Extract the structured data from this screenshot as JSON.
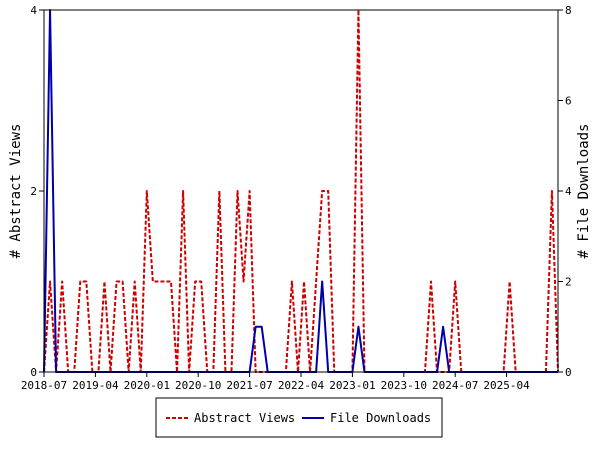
{
  "chart_data": {
    "type": "line",
    "ylabel_left": "# Abstract Views",
    "ylabel_right": "# File Downloads",
    "x_ticks": [
      "2018-07",
      "2019-04",
      "2020-01",
      "2020-10",
      "2021-07",
      "2022-04",
      "2023-01",
      "2023-10",
      "2024-07",
      "2025-04"
    ],
    "x_range": [
      0,
      85
    ],
    "y_left_ticks": [
      "0",
      "2",
      "4"
    ],
    "y_left_range": [
      0,
      4
    ],
    "y_right_ticks": [
      "0",
      "2",
      "4",
      "6",
      "8"
    ],
    "y_right_range": [
      0,
      8
    ],
    "legend_position": "bottom",
    "colors": {
      "abstract_views": "#cc0000",
      "file_downloads": "#0000aa"
    },
    "series": [
      {
        "name": "Abstract Views",
        "axis": "left",
        "x": [
          0,
          1,
          2,
          3,
          4,
          5,
          6,
          7,
          8,
          9,
          10,
          11,
          12,
          13,
          14,
          15,
          16,
          17,
          18,
          19,
          20,
          21,
          22,
          23,
          24,
          25,
          26,
          27,
          28,
          29,
          30,
          31,
          32,
          33,
          34,
          35,
          36,
          37,
          38,
          39,
          40,
          41,
          42,
          43,
          44,
          45,
          46,
          47,
          48,
          49,
          50,
          51,
          52,
          53,
          54,
          55,
          56,
          57,
          58,
          59,
          60,
          61,
          62,
          63,
          64,
          65,
          66,
          67,
          68,
          69,
          70,
          71,
          72,
          73,
          74,
          75,
          76,
          77,
          78,
          79,
          80,
          81,
          82,
          83,
          84,
          85
        ],
        "values": [
          0,
          1,
          0,
          1,
          0,
          0,
          1,
          1,
          0,
          0,
          1,
          0,
          1,
          1,
          0,
          1,
          0,
          2,
          1,
          1,
          1,
          1,
          0,
          2,
          0,
          1,
          1,
          0,
          0,
          2,
          0,
          0,
          2,
          1,
          2,
          0,
          0,
          0,
          0,
          0,
          0,
          1,
          0,
          1,
          0,
          1,
          2,
          2,
          0,
          0,
          0,
          0,
          4,
          0,
          0,
          0,
          0,
          0,
          0,
          0,
          0,
          0,
          0,
          0,
          1,
          0,
          0,
          0,
          1,
          0,
          0,
          0,
          0,
          0,
          0,
          0,
          0,
          1,
          0,
          0,
          0,
          0,
          0,
          0,
          2,
          0
        ]
      },
      {
        "name": "File Downloads",
        "axis": "right",
        "x": [
          0,
          1,
          2,
          3,
          4,
          5,
          6,
          7,
          8,
          9,
          10,
          11,
          12,
          13,
          14,
          15,
          16,
          17,
          18,
          19,
          20,
          21,
          22,
          23,
          24,
          25,
          26,
          27,
          28,
          29,
          30,
          31,
          32,
          33,
          34,
          35,
          36,
          37,
          38,
          39,
          40,
          41,
          42,
          43,
          44,
          45,
          46,
          47,
          48,
          49,
          50,
          51,
          52,
          53,
          54,
          55,
          56,
          57,
          58,
          59,
          60,
          61,
          62,
          63,
          64,
          65,
          66,
          67,
          68,
          69,
          70,
          71,
          72,
          73,
          74,
          75,
          76,
          77,
          78,
          79,
          80,
          81,
          82,
          83,
          84,
          85
        ],
        "values": [
          0,
          8,
          0,
          0,
          0,
          0,
          0,
          0,
          0,
          0,
          0,
          0,
          0,
          0,
          0,
          0,
          0,
          0,
          0,
          0,
          0,
          0,
          0,
          0,
          0,
          0,
          0,
          0,
          0,
          0,
          0,
          0,
          0,
          0,
          0,
          1,
          1,
          0,
          0,
          0,
          0,
          0,
          0,
          0,
          0,
          0,
          2,
          0,
          0,
          0,
          0,
          0,
          1,
          0,
          0,
          0,
          0,
          0,
          0,
          0,
          0,
          0,
          0,
          0,
          0,
          0,
          1,
          0,
          0,
          0,
          0,
          0,
          0,
          0,
          0,
          0,
          0,
          0,
          0,
          0,
          0,
          0,
          0,
          0,
          0,
          0
        ]
      }
    ]
  }
}
